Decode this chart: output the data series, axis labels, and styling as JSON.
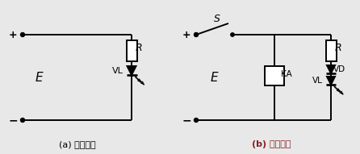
{
  "title_a": "(a) 直流驱动",
  "title_b": "(b) 直流驱动",
  "title_b_color": "#8B2020",
  "bg_color": "#e8e8e8",
  "line_color": "#000000",
  "label_E": "E",
  "label_R": "R",
  "label_VL": "VL",
  "label_KA": "KA",
  "label_VD": "VD",
  "label_S": "S",
  "label_plus": "+",
  "label_minus": "−",
  "fig_w": 4.46,
  "fig_h": 1.91,
  "dpi": 100
}
